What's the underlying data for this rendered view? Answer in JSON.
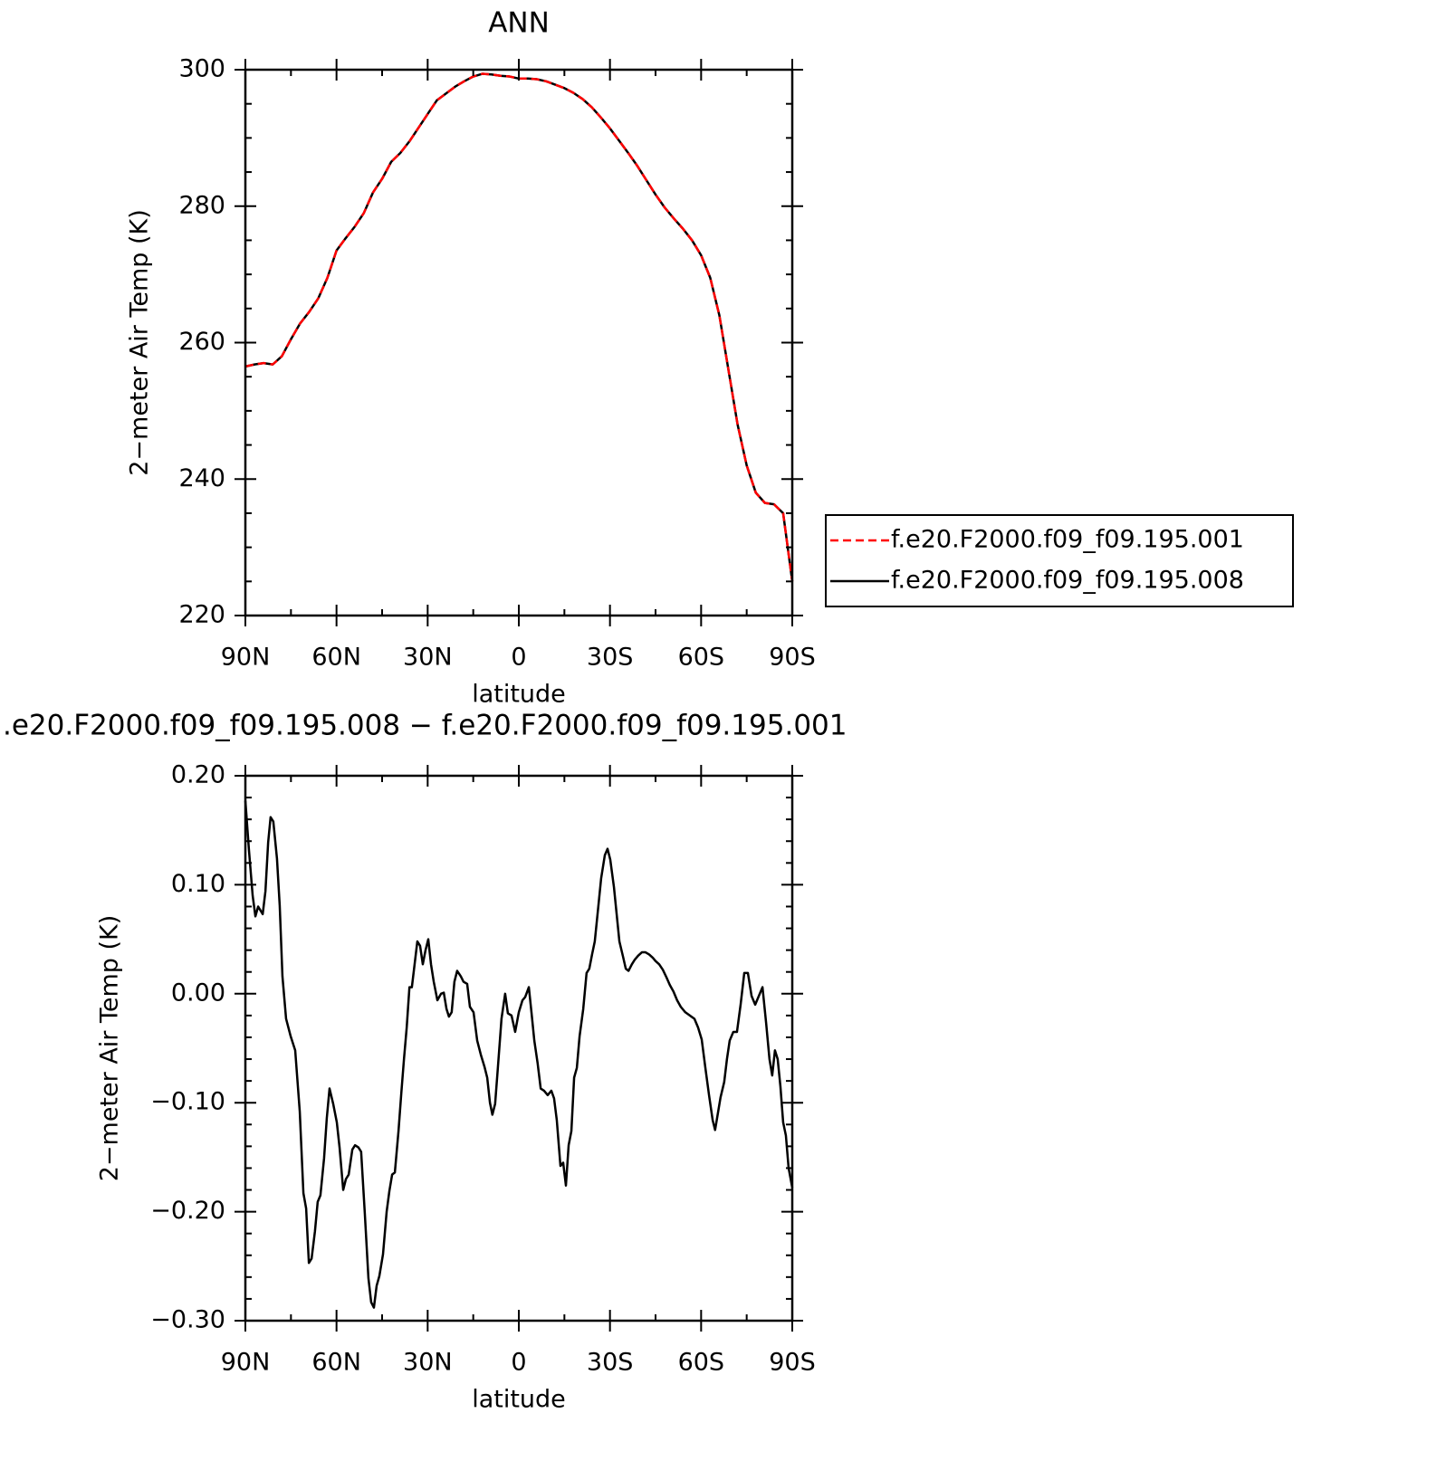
{
  "chart_data": [
    {
      "type": "line",
      "title": "ANN",
      "xlabel": "latitude",
      "ylabel": "2−meter Air Temp (K)",
      "x": [
        90,
        87,
        84,
        81,
        78,
        75,
        72,
        69,
        66,
        63,
        60,
        57,
        54,
        51,
        48,
        45,
        42,
        39,
        36,
        33,
        30,
        27,
        24,
        21,
        18,
        15,
        12,
        9,
        6,
        3,
        0,
        -3,
        -6,
        -9,
        -12,
        -15,
        -18,
        -21,
        -24,
        -27,
        -30,
        -33,
        -36,
        -39,
        -42,
        -45,
        -48,
        -51,
        -54,
        -57,
        -60,
        -63,
        -66,
        -69,
        -72,
        -75,
        -78,
        -81,
        -84,
        -87,
        -90
      ],
      "series": [
        {
          "name": "f.e20.F2000.f09_f09.195.001",
          "color": "#ff0000",
          "linestyle": "dashed",
          "values": [
            256.5,
            256.8,
            257,
            256.8,
            258,
            260.5,
            262.8,
            264.5,
            266.5,
            269.5,
            273.5,
            275.3,
            277,
            279,
            282,
            284,
            286.5,
            287.8,
            289.5,
            291.5,
            293.5,
            295.5,
            296.5,
            297.5,
            298.3,
            299,
            299.4,
            299.3,
            299.1,
            299,
            298.7,
            298.7,
            298.6,
            298.3,
            297.8,
            297.3,
            296.6,
            295.7,
            294.5,
            293,
            291.4,
            289.6,
            287.8,
            285.9,
            283.8,
            281.7,
            279.8,
            278.2,
            276.7,
            275,
            272.8,
            269.5,
            264,
            256,
            248,
            242,
            238,
            236.5,
            236.3,
            235,
            225
          ]
        },
        {
          "name": "f.e20.F2000.f09_f09.195.008",
          "color": "#000000",
          "linestyle": "solid",
          "values": [
            256.5,
            256.8,
            257,
            256.8,
            258,
            260.5,
            262.8,
            264.5,
            266.5,
            269.5,
            273.5,
            275.3,
            277,
            279,
            282,
            284,
            286.5,
            287.8,
            289.5,
            291.5,
            293.5,
            295.5,
            296.5,
            297.5,
            298.3,
            299,
            299.4,
            299.3,
            299.1,
            299,
            298.7,
            298.7,
            298.6,
            298.3,
            297.8,
            297.3,
            296.6,
            295.7,
            294.5,
            293,
            291.4,
            289.6,
            287.8,
            285.9,
            283.8,
            281.7,
            279.8,
            278.2,
            276.7,
            275,
            272.8,
            269.5,
            264,
            256,
            248,
            242,
            238,
            236.5,
            236.3,
            235,
            225
          ]
        }
      ],
      "xlim": [
        90,
        -90
      ],
      "xticks": [
        {
          "value": 90,
          "label": "90N"
        },
        {
          "value": 60,
          "label": "60N"
        },
        {
          "value": 30,
          "label": "30N"
        },
        0,
        {
          "value": -30,
          "label": "30S"
        },
        {
          "value": -60,
          "label": "60S"
        },
        {
          "value": -90,
          "label": "90S"
        }
      ],
      "xminorticks": [
        75,
        45,
        15,
        -15,
        -45,
        -75
      ],
      "ylim": [
        220,
        300
      ],
      "yticks": [
        220,
        240,
        260,
        280,
        300
      ],
      "yminorticks": [
        225,
        230,
        235,
        245,
        250,
        255,
        265,
        270,
        275,
        285,
        290,
        295
      ],
      "legend": "right"
    },
    {
      "type": "line",
      "title": ".e20.F2000.f09_f09.195.008 − f.e20.F2000.f09_f09.195.001",
      "xlabel": "latitude",
      "ylabel": "2−meter Air Temp (K)",
      "x": [
        90,
        88.8,
        87.6,
        86.7,
        85.8,
        84.3,
        83.4,
        82.5,
        81.7,
        80.8,
        79.6,
        78.7,
        77.8,
        76.6,
        75.1,
        73.6,
        72.1,
        70.9,
        70,
        69.1,
        68.2,
        67.1,
        66.2,
        65.3,
        64.1,
        63.2,
        62.3,
        61.1,
        59.9,
        59,
        57.8,
        56.9,
        56,
        54.8,
        53.9,
        52.8,
        51.9,
        50.7,
        49.5,
        48.6,
        47.7,
        46.8,
        45.9,
        44.7,
        43.5,
        42.6,
        41.7,
        40.8,
        39.6,
        38.7,
        37.8,
        36.9,
        36,
        35.2,
        34.3,
        33.4,
        32.5,
        31.6,
        30.7,
        29.8,
        28.9,
        28,
        26.8,
        25.6,
        24.7,
        23.8,
        23,
        22.1,
        21.2,
        20.3,
        19.1,
        18.2,
        17,
        16.1,
        14.9,
        13.7,
        12.5,
        11.3,
        10.4,
        9.5,
        8.7,
        7.8,
        6.9,
        5.7,
        4.5,
        3.6,
        2.4,
        1.2,
        0,
        -1.2,
        -2.1,
        -3.3,
        -4.2,
        -5.1,
        -6.2,
        -7.2,
        -8.3,
        -9.5,
        -10.7,
        -11.6,
        -12.5,
        -13.7,
        -14.6,
        -15.5,
        -16.4,
        -17.3,
        -18.2,
        -19.1,
        -20,
        -21.2,
        -22.3,
        -23.2,
        -24.1,
        -25,
        -26.2,
        -27.1,
        -28.3,
        -29.2,
        -30.1,
        -31.3,
        -32.2,
        -33.1,
        -34.3,
        -35.2,
        -36.1,
        -37.2,
        -38.1,
        -39.3,
        -40.5,
        -41.7,
        -42.9,
        -44.1,
        -45,
        -46.2,
        -47.4,
        -48.6,
        -49.7,
        -50.9,
        -52.1,
        -53.3,
        -54.8,
        -56.3,
        -57.8,
        -59,
        -60.2,
        -61.4,
        -62.6,
        -63.8,
        -64.6,
        -65.5,
        -66.4,
        -67.6,
        -68.5,
        -69.4,
        -70.6,
        -71.8,
        -73,
        -74.2,
        -75.4,
        -76.6,
        -77.8,
        -79,
        -80.2,
        -81.4,
        -82.5,
        -83.4,
        -84.3,
        -85.2,
        -86.1,
        -87,
        -87.9,
        -88.8,
        -90
      ],
      "series": [
        {
          "name": null,
          "color": "#000000",
          "linestyle": "solid",
          "values": [
            0.177,
            0.131,
            0.09,
            0.071,
            0.08,
            0.073,
            0.094,
            0.139,
            0.162,
            0.158,
            0.124,
            0.081,
            0.016,
            -0.023,
            -0.039,
            -0.052,
            -0.108,
            -0.183,
            -0.197,
            -0.247,
            -0.243,
            -0.218,
            -0.191,
            -0.185,
            -0.151,
            -0.114,
            -0.087,
            -0.101,
            -0.118,
            -0.141,
            -0.18,
            -0.17,
            -0.166,
            -0.143,
            -0.139,
            -0.141,
            -0.145,
            -0.201,
            -0.261,
            -0.283,
            -0.288,
            -0.268,
            -0.259,
            -0.239,
            -0.2,
            -0.181,
            -0.166,
            -0.164,
            -0.126,
            -0.092,
            -0.06,
            -0.031,
            0.006,
            0.006,
            0.027,
            0.048,
            0.044,
            0.027,
            0.04,
            0.05,
            0.027,
            0.011,
            -0.006,
            0,
            0.001,
            -0.014,
            -0.021,
            -0.017,
            0.011,
            0.021,
            0.016,
            0.011,
            0.009,
            -0.012,
            -0.017,
            -0.043,
            -0.056,
            -0.067,
            -0.077,
            -0.1,
            -0.111,
            -0.101,
            -0.068,
            -0.023,
            0,
            -0.018,
            -0.02,
            -0.035,
            -0.017,
            -0.006,
            -0.003,
            0.006,
            -0.018,
            -0.043,
            -0.064,
            -0.087,
            -0.089,
            -0.093,
            -0.089,
            -0.096,
            -0.116,
            -0.158,
            -0.155,
            -0.176,
            -0.139,
            -0.126,
            -0.077,
            -0.068,
            -0.039,
            -0.014,
            0.019,
            0.023,
            0.036,
            0.048,
            0.081,
            0.106,
            0.127,
            0.133,
            0.123,
            0.098,
            0.073,
            0.048,
            0.034,
            0.023,
            0.021,
            0.027,
            0.031,
            0.035,
            0.038,
            0.038,
            0.036,
            0.033,
            0.03,
            0.027,
            0.022,
            0.015,
            0.008,
            0.002,
            -0.006,
            -0.012,
            -0.017,
            -0.02,
            -0.023,
            -0.031,
            -0.042,
            -0.068,
            -0.093,
            -0.116,
            -0.125,
            -0.11,
            -0.095,
            -0.081,
            -0.06,
            -0.043,
            -0.035,
            -0.035,
            -0.01,
            0.019,
            0.019,
            -0.002,
            -0.01,
            -0.002,
            0.006,
            -0.027,
            -0.06,
            -0.075,
            -0.052,
            -0.06,
            -0.085,
            -0.118,
            -0.13,
            -0.16,
            -0.178
          ]
        }
      ],
      "xlim": [
        90,
        -90
      ],
      "xticks": [
        {
          "value": 90,
          "label": "90N"
        },
        {
          "value": 60,
          "label": "60N"
        },
        {
          "value": 30,
          "label": "30N"
        },
        0,
        {
          "value": -30,
          "label": "30S"
        },
        {
          "value": -60,
          "label": "60S"
        },
        {
          "value": -90,
          "label": "90S"
        }
      ],
      "xminorticks": [
        75,
        45,
        15,
        -15,
        -45,
        -75
      ],
      "ylim": [
        -0.3,
        0.2
      ],
      "yticks": [
        {
          "value": -0.3,
          "label": "−0.30"
        },
        {
          "value": -0.2,
          "label": "−0.20"
        },
        {
          "value": -0.1,
          "label": "−0.10"
        },
        {
          "value": 0,
          "label": "0.00"
        },
        {
          "value": 0.1,
          "label": "0.10"
        },
        {
          "value": 0.2,
          "label": "0.20"
        }
      ],
      "yminorticks": [
        -0.28,
        -0.26,
        -0.24,
        -0.22,
        -0.18,
        -0.16,
        -0.14,
        -0.12,
        -0.08,
        -0.06,
        -0.04,
        -0.02,
        0.02,
        0.04,
        0.06,
        0.08,
        0.12,
        0.14,
        0.16,
        0.18
      ]
    }
  ]
}
